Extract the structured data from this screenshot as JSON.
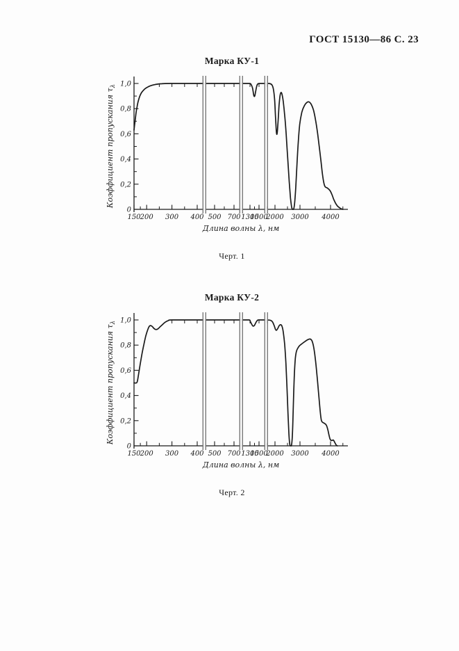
{
  "page": {
    "header": "ГОСТ 15130—86 С. 23",
    "background": "#fdfdfd",
    "ink": "#1a1a1a",
    "break_line_color": "#777777"
  },
  "figures": [
    {
      "title": "Марка КУ-1",
      "caption": "Черт. 1"
    },
    {
      "title": "Марка КУ-2",
      "caption": "Черт. 2"
    }
  ],
  "chart_data": [
    {
      "type": "line",
      "title": "Марка КУ-1",
      "xlabel": "Длина волны λ, нм",
      "ylabel": "Коэффициент пропускания τλ",
      "ylabel_main": "Коэффициент пропускания τ",
      "ylabel_sub": "λ",
      "x_scale": "piecewise linear with axis breaks",
      "xlim": [
        150,
        4450
      ],
      "ylim": [
        0,
        1.0
      ],
      "grid": false,
      "legend": "none",
      "x_ticks": [
        150,
        200,
        300,
        400,
        500,
        700,
        1300,
        1500,
        2000,
        3000,
        4000
      ],
      "x_tick_labels": [
        "150",
        "200",
        "300",
        "400",
        "500",
        "700",
        "1300",
        "1500",
        "2000",
        "3000",
        "4000"
      ],
      "x_minor_ticks": [
        175,
        250,
        350,
        600,
        1400,
        1750,
        2500,
        3500,
        4400
      ],
      "y_ticks": [
        0,
        0.2,
        0.4,
        0.6,
        0.8,
        1.0
      ],
      "y_tick_labels": [
        "0",
        "0,2",
        "0,4",
        "0,6",
        "0,8",
        "1,0"
      ],
      "y_minor_ticks": [
        0.1,
        0.3,
        0.5,
        0.7,
        0.9
      ],
      "axis_breaks_after": [
        400,
        700,
        1500
      ],
      "top_ticks": [
        250,
        300,
        350,
        400,
        500,
        600,
        700,
        1300,
        1500,
        1750
      ],
      "series": [
        {
          "name": "КУ-1",
          "points": [
            [
              150,
              0.63
            ],
            [
              152,
              0.665
            ],
            [
              155,
              0.715
            ],
            [
              158,
              0.765
            ],
            [
              162,
              0.815
            ],
            [
              167,
              0.862
            ],
            [
              173,
              0.9
            ],
            [
              180,
              0.928
            ],
            [
              190,
              0.952
            ],
            [
              200,
              0.967
            ],
            [
              215,
              0.982
            ],
            [
              235,
              0.992
            ],
            [
              260,
              0.998
            ],
            [
              300,
              1
            ],
            [
              400,
              1
            ],
            [
              500,
              1
            ],
            [
              700,
              1
            ],
            [
              1000,
              1
            ],
            [
              1280,
              1
            ],
            [
              1320,
              0.995
            ],
            [
              1355,
              0.965
            ],
            [
              1385,
              0.905
            ],
            [
              1405,
              0.9
            ],
            [
              1425,
              0.935
            ],
            [
              1450,
              0.98
            ],
            [
              1475,
              0.997
            ],
            [
              1520,
              1
            ],
            [
              1700,
              1
            ],
            [
              1820,
              1
            ],
            [
              1900,
              0.99
            ],
            [
              1950,
              0.955
            ],
            [
              1990,
              0.87
            ],
            [
              2020,
              0.74
            ],
            [
              2050,
              0.63
            ],
            [
              2075,
              0.595
            ],
            [
              2100,
              0.63
            ],
            [
              2130,
              0.72
            ],
            [
              2165,
              0.83
            ],
            [
              2200,
              0.9
            ],
            [
              2240,
              0.928
            ],
            [
              2280,
              0.915
            ],
            [
              2330,
              0.858
            ],
            [
              2390,
              0.745
            ],
            [
              2450,
              0.59
            ],
            [
              2510,
              0.4
            ],
            [
              2570,
              0.22
            ],
            [
              2620,
              0.09
            ],
            [
              2665,
              0.02
            ],
            [
              2700,
              0
            ],
            [
              2745,
              0
            ],
            [
              2785,
              0.05
            ],
            [
              2830,
              0.17
            ],
            [
              2880,
              0.36
            ],
            [
              2930,
              0.53
            ],
            [
              2990,
              0.675
            ],
            [
              3060,
              0.77
            ],
            [
              3140,
              0.822
            ],
            [
              3230,
              0.85
            ],
            [
              3300,
              0.853
            ],
            [
              3370,
              0.833
            ],
            [
              3440,
              0.79
            ],
            [
              3510,
              0.71
            ],
            [
              3570,
              0.615
            ],
            [
              3630,
              0.5
            ],
            [
              3690,
              0.375
            ],
            [
              3740,
              0.27
            ],
            [
              3790,
              0.2
            ],
            [
              3830,
              0.178
            ],
            [
              3890,
              0.17
            ],
            [
              3950,
              0.158
            ],
            [
              4000,
              0.142
            ],
            [
              4050,
              0.115
            ],
            [
              4100,
              0.082
            ],
            [
              4160,
              0.05
            ],
            [
              4230,
              0.025
            ],
            [
              4320,
              0.008
            ],
            [
              4400,
              0
            ]
          ]
        }
      ]
    },
    {
      "type": "line",
      "title": "Марка КУ-2",
      "xlabel": "Длина волны λ, нм",
      "ylabel": "Коэффициент пропускания τλ",
      "ylabel_main": "Коэффициент пропускания τ",
      "ylabel_sub": "λ",
      "x_scale": "piecewise linear with axis breaks",
      "xlim": [
        150,
        4450
      ],
      "ylim": [
        0,
        1.0
      ],
      "grid": false,
      "legend": "none",
      "x_ticks": [
        150,
        200,
        300,
        400,
        500,
        700,
        1300,
        1500,
        2000,
        3000,
        4000
      ],
      "x_tick_labels": [
        "150",
        "200",
        "300",
        "400",
        "500",
        "700",
        "1300",
        "1500",
        "2000",
        "3000",
        "4000"
      ],
      "x_minor_ticks": [
        175,
        250,
        350,
        600,
        1400,
        1750,
        2500,
        3500,
        4400
      ],
      "y_ticks": [
        0,
        0.2,
        0.4,
        0.6,
        0.8,
        1.0
      ],
      "y_tick_labels": [
        "0",
        "0,2",
        "0,4",
        "0,6",
        "0,8",
        "1,0"
      ],
      "y_minor_ticks": [
        0.1,
        0.3,
        0.5,
        0.7,
        0.9
      ],
      "axis_breaks_after": [
        400,
        700,
        1500
      ],
      "top_ticks": [
        300,
        350,
        400,
        500,
        600,
        700,
        1300,
        1500,
        1750
      ],
      "series": [
        {
          "name": "КУ-2",
          "points": [
            [
              150,
              0.5
            ],
            [
              160,
              0.5
            ],
            [
              164,
              0.52
            ],
            [
              169,
              0.58
            ],
            [
              175,
              0.655
            ],
            [
              182,
              0.735
            ],
            [
              189,
              0.805
            ],
            [
              196,
              0.868
            ],
            [
              203,
              0.915
            ],
            [
              210,
              0.948
            ],
            [
              216,
              0.955
            ],
            [
              222,
              0.948
            ],
            [
              229,
              0.932
            ],
            [
              236,
              0.924
            ],
            [
              244,
              0.928
            ],
            [
              252,
              0.943
            ],
            [
              262,
              0.962
            ],
            [
              273,
              0.982
            ],
            [
              285,
              0.994
            ],
            [
              300,
              1
            ],
            [
              400,
              1
            ],
            [
              500,
              1
            ],
            [
              700,
              1
            ],
            [
              1000,
              1
            ],
            [
              1270,
              1
            ],
            [
              1305,
              0.99
            ],
            [
              1335,
              0.968
            ],
            [
              1365,
              0.952
            ],
            [
              1395,
              0.955
            ],
            [
              1425,
              0.975
            ],
            [
              1455,
              0.993
            ],
            [
              1490,
              1
            ],
            [
              1700,
              1
            ],
            [
              1850,
              0.998
            ],
            [
              1920,
              0.985
            ],
            [
              1975,
              0.955
            ],
            [
              2020,
              0.925
            ],
            [
              2060,
              0.918
            ],
            [
              2110,
              0.932
            ],
            [
              2170,
              0.955
            ],
            [
              2230,
              0.962
            ],
            [
              2280,
              0.95
            ],
            [
              2330,
              0.905
            ],
            [
              2385,
              0.81
            ],
            [
              2435,
              0.66
            ],
            [
              2480,
              0.46
            ],
            [
              2520,
              0.26
            ],
            [
              2555,
              0.1
            ],
            [
              2585,
              0.02
            ],
            [
              2615,
              0
            ],
            [
              2655,
              0
            ],
            [
              2690,
              0.06
            ],
            [
              2720,
              0.22
            ],
            [
              2750,
              0.43
            ],
            [
              2780,
              0.59
            ],
            [
              2815,
              0.695
            ],
            [
              2855,
              0.748
            ],
            [
              2910,
              0.775
            ],
            [
              2980,
              0.795
            ],
            [
              3070,
              0.812
            ],
            [
              3170,
              0.83
            ],
            [
              3270,
              0.845
            ],
            [
              3340,
              0.848
            ],
            [
              3400,
              0.83
            ],
            [
              3455,
              0.775
            ],
            [
              3505,
              0.685
            ],
            [
              3555,
              0.565
            ],
            [
              3605,
              0.43
            ],
            [
              3650,
              0.305
            ],
            [
              3690,
              0.215
            ],
            [
              3725,
              0.19
            ],
            [
              3790,
              0.18
            ],
            [
              3860,
              0.165
            ],
            [
              3910,
              0.13
            ],
            [
              3950,
              0.085
            ],
            [
              3990,
              0.05
            ],
            [
              4040,
              0.042
            ],
            [
              4090,
              0.046
            ],
            [
              4130,
              0.03
            ],
            [
              4180,
              0.008
            ],
            [
              4220,
              0
            ]
          ]
        }
      ]
    }
  ]
}
